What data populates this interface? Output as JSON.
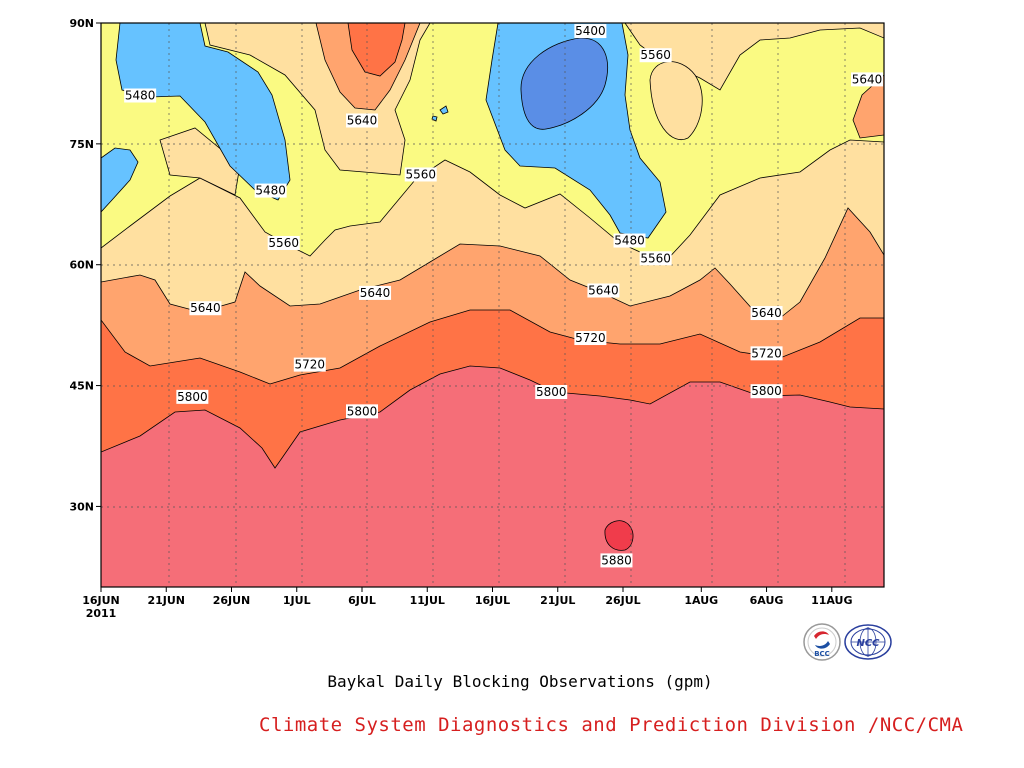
{
  "chart_data": {
    "type": "heatmap",
    "title": "Baykal Daily Blocking Observations (gpm)",
    "y_ticks": [
      "90N",
      "75N",
      "60N",
      "45N",
      "30N"
    ],
    "y_tick_values": [
      90,
      75,
      60,
      45,
      30
    ],
    "x_ticks": [
      "16JUN",
      "21JUN",
      "26JUN",
      "1JUL",
      "6JUL",
      "11JUL",
      "16JUL",
      "21JUL",
      "26JUL",
      "1AUG",
      "6AUG",
      "11AUG"
    ],
    "x_tick_days": [
      0,
      5,
      10,
      15,
      20,
      25,
      30,
      35,
      40,
      46,
      51,
      56
    ],
    "x_year_label": "2011",
    "x_range_days": [
      0,
      60
    ],
    "y_range": [
      20,
      90
    ],
    "contour_levels": [
      5400,
      5480,
      5560,
      5640,
      5720,
      5800,
      5880
    ],
    "level_colors": {
      "below_5400": "#5a8ee6",
      "5400_5480": "#66c2ff",
      "5480_5560": "#fafa82",
      "5560_5640": "#ffe0a0",
      "5640_5720": "#ffa46e",
      "5720_5800": "#ff7346",
      "5800_5880": "#f56e78",
      "above_5880": "#f03c4b"
    },
    "contour_labels": [
      {
        "text": "5400",
        "day": 37.5,
        "lat": 89.0
      },
      {
        "text": "5480",
        "day": 3,
        "lat": 81.0
      },
      {
        "text": "5480",
        "day": 13.0,
        "lat": 69.2
      },
      {
        "text": "5480",
        "day": 40.5,
        "lat": 63.0
      },
      {
        "text": "5560",
        "day": 42.5,
        "lat": 86.0
      },
      {
        "text": "5560",
        "day": 24.5,
        "lat": 71.2
      },
      {
        "text": "5560",
        "day": 14.0,
        "lat": 62.7
      },
      {
        "text": "5560",
        "day": 42.5,
        "lat": 60.8
      },
      {
        "text": "5640",
        "day": 20.0,
        "lat": 77.9
      },
      {
        "text": "5640",
        "day": 58.7,
        "lat": 83.0
      },
      {
        "text": "5640",
        "day": 8.0,
        "lat": 54.6
      },
      {
        "text": "5640",
        "day": 21.0,
        "lat": 56.5
      },
      {
        "text": "5640",
        "day": 38.5,
        "lat": 56.8
      },
      {
        "text": "5640",
        "day": 51.0,
        "lat": 54.0
      },
      {
        "text": "5720",
        "day": 16.0,
        "lat": 47.6
      },
      {
        "text": "5720",
        "day": 37.5,
        "lat": 50.9
      },
      {
        "text": "5720",
        "day": 51.0,
        "lat": 49.0
      },
      {
        "text": "5800",
        "day": 7.0,
        "lat": 43.6
      },
      {
        "text": "5800",
        "day": 20.0,
        "lat": 41.8
      },
      {
        "text": "5800",
        "day": 34.5,
        "lat": 44.2
      },
      {
        "text": "5800",
        "day": 51.0,
        "lat": 44.3
      },
      {
        "text": "5880",
        "day": 39.5,
        "lat": 23.3
      }
    ]
  },
  "page": {
    "subtitle": "Baykal Daily Blocking Observations (gpm)",
    "credit": "Climate System Diagnostics and Prediction Division /NCC/CMA",
    "logo_bcc_text": "BCC",
    "logo_ncc_text": "NCC"
  }
}
